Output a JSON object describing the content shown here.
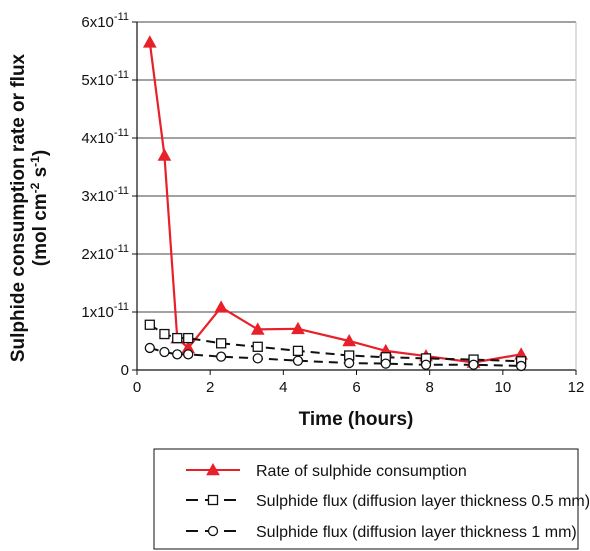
{
  "chart_data": {
    "type": "line",
    "title": "",
    "xlabel": "Time (hours)",
    "ylabel_line1": "Sulphide consumption rate or flux",
    "ylabel_line2": "(mol cm",
    "ylabel_sup1": "-2",
    "ylabel_mid": " s",
    "ylabel_sup2": "-1",
    "ylabel_end": ")",
    "xlim": [
      0,
      12
    ],
    "ylim": [
      0,
      6e-11
    ],
    "grid": "horizontal",
    "legend_position": "bottom",
    "x_ticks": [
      0,
      2,
      4,
      6,
      8,
      10,
      12
    ],
    "x_tick_labels": [
      "0",
      "2",
      "4",
      "6",
      "8",
      "10",
      "12"
    ],
    "y_ticks": [
      0,
      1e-11,
      2e-11,
      3e-11,
      4e-11,
      5e-11,
      6e-11
    ],
    "y_tick_labels": [
      {
        "mantissa": "0",
        "exp": ""
      },
      {
        "mantissa": "1x10",
        "exp": "-11"
      },
      {
        "mantissa": "2x10",
        "exp": "-11"
      },
      {
        "mantissa": "3x10",
        "exp": "-11"
      },
      {
        "mantissa": "4x10",
        "exp": "-11"
      },
      {
        "mantissa": "5x10",
        "exp": "-11"
      },
      {
        "mantissa": "6x10",
        "exp": "-11"
      }
    ],
    "series": [
      {
        "name": "Rate of sulphide consumption",
        "color": "#e8202a",
        "marker": "triangle",
        "dash": "solid",
        "x": [
          0.35,
          0.75,
          1.1,
          1.4,
          2.3,
          3.3,
          4.4,
          5.8,
          6.8,
          7.9,
          9.2,
          10.5
        ],
        "y": [
          5.65e-11,
          3.7e-11,
          5.5e-12,
          3.8e-12,
          1.08e-11,
          7e-12,
          7.1e-12,
          5e-12,
          3.3e-12,
          2.4e-12,
          1.3e-12,
          2.7e-12
        ]
      },
      {
        "name": "Sulphide flux (diffusion layer thickness 0.5 mm)",
        "color": "#111111",
        "marker": "square",
        "dash": "dashed",
        "x": [
          0.35,
          0.75,
          1.1,
          1.4,
          2.3,
          3.3,
          4.4,
          5.8,
          6.8,
          7.9,
          9.2,
          10.5
        ],
        "y": [
          7.8e-12,
          6.2e-12,
          5.5e-12,
          5.5e-12,
          4.6e-12,
          4e-12,
          3.3e-12,
          2.5e-12,
          2.2e-12,
          2e-12,
          1.8e-12,
          1.5e-12
        ]
      },
      {
        "name": "Sulphide flux (diffusion layer thickness 1 mm)",
        "color": "#111111",
        "marker": "circle",
        "dash": "dashed",
        "x": [
          0.35,
          0.75,
          1.1,
          1.4,
          2.3,
          3.3,
          4.4,
          5.8,
          6.8,
          7.9,
          9.2,
          10.5
        ],
        "y": [
          3.8e-12,
          3.1e-12,
          2.7e-12,
          2.7e-12,
          2.3e-12,
          2e-12,
          1.6e-12,
          1.2e-12,
          1.1e-12,
          9e-13,
          9e-13,
          7e-13
        ]
      }
    ]
  }
}
